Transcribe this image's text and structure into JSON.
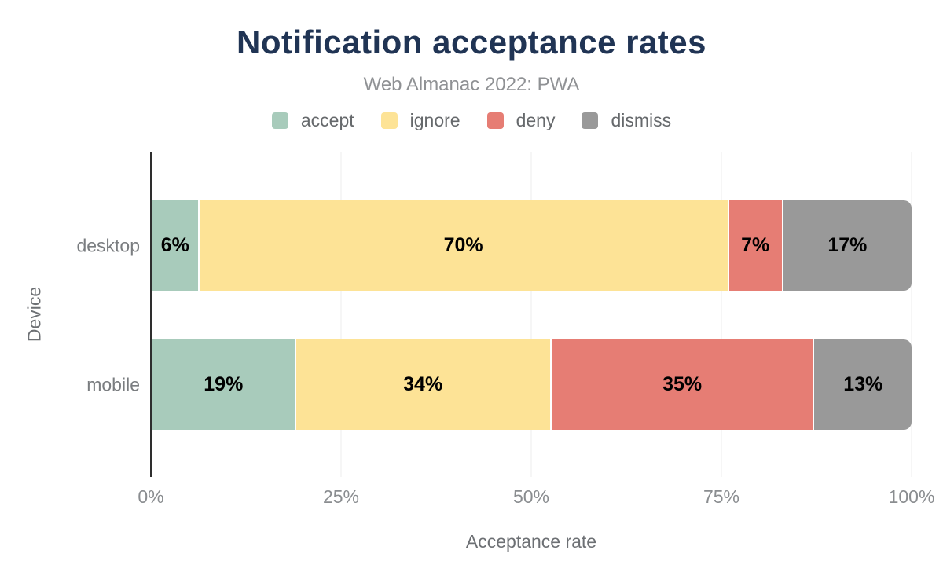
{
  "title": "Notification acceptance rates",
  "subtitle": "Web Almanac 2022: PWA",
  "colors": {
    "title": "#203454",
    "accept": "#a8cbbb",
    "ignore": "#fde396",
    "deny": "#e67d74",
    "dismiss": "#999999",
    "axis_line": "#2e2e2e",
    "gridline": "#ececec"
  },
  "chart_data": {
    "type": "bar",
    "orientation": "horizontal",
    "stacked": true,
    "title": "Notification acceptance rates",
    "subtitle": "Web Almanac 2022: PWA",
    "xlabel": "Acceptance rate",
    "ylabel": "Device",
    "categories": [
      "desktop",
      "mobile"
    ],
    "series": [
      {
        "name": "accept",
        "color": "#a8cbbb",
        "values": [
          6,
          19
        ]
      },
      {
        "name": "ignore",
        "color": "#fde396",
        "values": [
          70,
          34
        ]
      },
      {
        "name": "deny",
        "color": "#e67d74",
        "values": [
          7,
          35
        ]
      },
      {
        "name": "dismiss",
        "color": "#999999",
        "values": [
          17,
          13
        ]
      }
    ],
    "value_suffix": "%",
    "data_labels": {
      "desktop": [
        "6%",
        "70%",
        "7%",
        "17%"
      ],
      "mobile": [
        "19%",
        "34%",
        "35%",
        "13%"
      ]
    },
    "xlim": [
      0,
      100
    ],
    "x_tick_values": [
      0,
      25,
      50,
      75,
      100
    ],
    "x_tick_labels": [
      "0%",
      "25%",
      "50%",
      "75%",
      "100%"
    ],
    "grid": true,
    "legend_position": "top",
    "legend_labels": [
      "accept",
      "ignore",
      "deny",
      "dismiss"
    ]
  }
}
